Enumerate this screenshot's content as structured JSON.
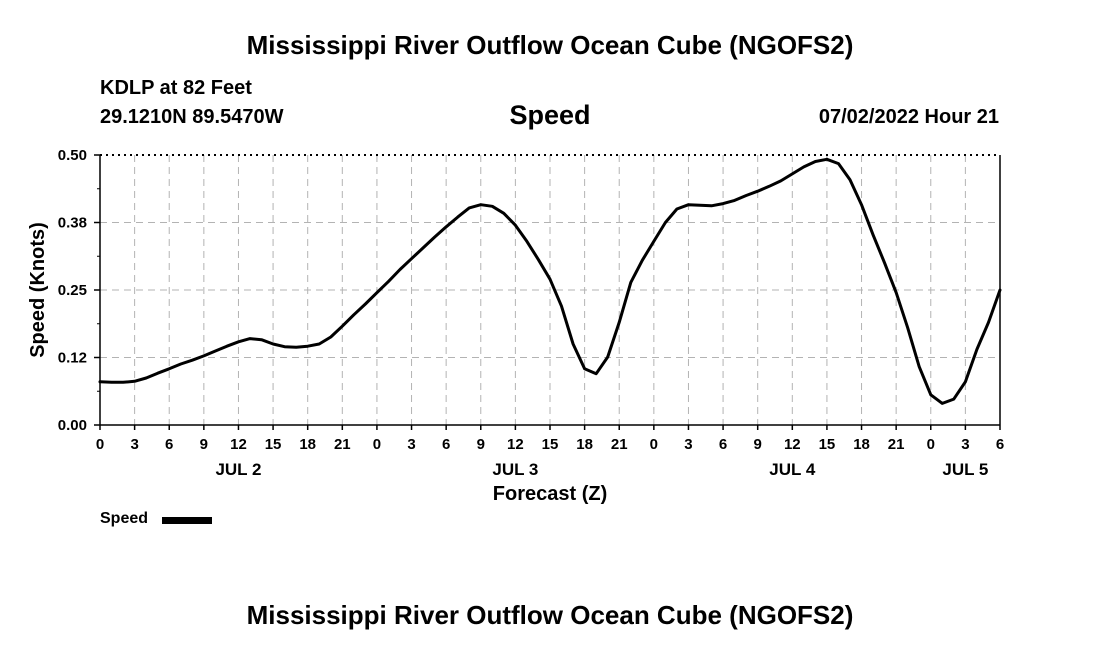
{
  "header": {
    "title": "Mississippi River Outflow Ocean Cube (NGOFS2)",
    "station": "KDLP at 82 Feet",
    "coords": "29.1210N  89.5470W",
    "variable": "Speed",
    "datetime": "07/02/2022 Hour 21"
  },
  "legend": {
    "label": "Speed"
  },
  "footer": {
    "title": "Mississippi River Outflow Ocean Cube (NGOFS2)"
  },
  "chart_data": {
    "type": "line",
    "xlabel": "Forecast (Z)",
    "ylabel": "Speed (Knots)",
    "ylim": [
      0,
      0.5
    ],
    "xlim_hours": [
      0,
      78
    ],
    "y_ticks": [
      "0.00",
      "0.12",
      "0.25",
      "0.38",
      "0.50"
    ],
    "y_tick_values": [
      0,
      0.125,
      0.25,
      0.375,
      0.5
    ],
    "x_tick_labels": [
      "0",
      "3",
      "6",
      "9",
      "12",
      "15",
      "18",
      "21",
      "0",
      "3",
      "6",
      "9",
      "12",
      "15",
      "18",
      "21",
      "0",
      "3",
      "6",
      "9",
      "12",
      "15",
      "18",
      "21",
      "0",
      "3",
      "6"
    ],
    "day_labels": [
      {
        "label": "JUL 2",
        "hour": 12
      },
      {
        "label": "JUL 3",
        "hour": 36
      },
      {
        "label": "JUL 4",
        "hour": 60
      },
      {
        "label": "JUL 5",
        "hour": 75
      }
    ],
    "grid": true,
    "legend_position": "bottom-left",
    "series": [
      {
        "name": "Speed",
        "color": "#000000",
        "x_hours": [
          0,
          1,
          2,
          3,
          4,
          5,
          6,
          7,
          8,
          9,
          10,
          11,
          12,
          13,
          14,
          15,
          16,
          17,
          18,
          19,
          20,
          21,
          22,
          23,
          24,
          25,
          26,
          27,
          28,
          29,
          30,
          31,
          32,
          33,
          34,
          35,
          36,
          37,
          38,
          39,
          40,
          41,
          42,
          43,
          44,
          45,
          46,
          47,
          48,
          49,
          50,
          51,
          52,
          53,
          54,
          55,
          56,
          57,
          58,
          59,
          60,
          61,
          62,
          63,
          64,
          65,
          66,
          67,
          68,
          69,
          70,
          71,
          72,
          73,
          74,
          75,
          76,
          77,
          78
        ],
        "values": [
          0.08,
          0.079,
          0.079,
          0.081,
          0.087,
          0.096,
          0.104,
          0.113,
          0.12,
          0.128,
          0.137,
          0.146,
          0.154,
          0.16,
          0.158,
          0.15,
          0.145,
          0.144,
          0.146,
          0.15,
          0.163,
          0.183,
          0.204,
          0.224,
          0.245,
          0.266,
          0.288,
          0.308,
          0.328,
          0.348,
          0.367,
          0.385,
          0.402,
          0.408,
          0.405,
          0.392,
          0.37,
          0.34,
          0.306,
          0.27,
          0.22,
          0.15,
          0.104,
          0.095,
          0.126,
          0.19,
          0.264,
          0.305,
          0.34,
          0.375,
          0.4,
          0.408,
          0.407,
          0.406,
          0.41,
          0.416,
          0.425,
          0.433,
          0.442,
          0.452,
          0.465,
          0.478,
          0.488,
          0.492,
          0.484,
          0.454,
          0.408,
          0.352,
          0.3,
          0.245,
          0.18,
          0.108,
          0.056,
          0.04,
          0.048,
          0.08,
          0.14,
          0.19,
          0.25
        ]
      }
    ]
  }
}
